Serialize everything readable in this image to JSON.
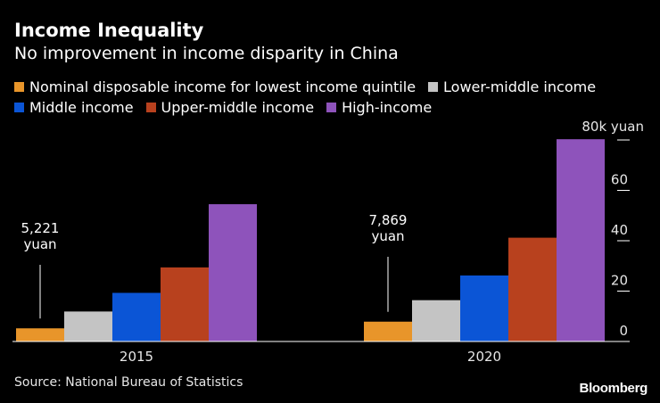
{
  "header": {
    "title": "Income Inequality",
    "subtitle": "No improvement in income disparity in China"
  },
  "source": "Source: National Bureau of Statistics",
  "brand": "Bloomberg",
  "chart_data": {
    "type": "bar",
    "title": "Income Inequality",
    "subtitle": "No improvement in income disparity in China",
    "categories": [
      "2015",
      "2020"
    ],
    "series": [
      {
        "name": "Nominal disposable income for lowest income quintile",
        "color": "#e8952a",
        "values": [
          5.221,
          7.869
        ]
      },
      {
        "name": "Lower-middle income",
        "color": "#c4c4c4",
        "values": [
          11.9,
          16.4
        ]
      },
      {
        "name": "Middle income",
        "color": "#0b55d6",
        "values": [
          19.3,
          26.2
        ]
      },
      {
        "name": "Upper-middle income",
        "color": "#b8411e",
        "values": [
          29.4,
          41.2
        ]
      },
      {
        "name": "High-income",
        "color": "#8e53bb",
        "values": [
          54.5,
          80.3
        ]
      }
    ],
    "annotations": [
      {
        "category": "2015",
        "lines": [
          "5,221",
          "yuan"
        ]
      },
      {
        "category": "2020",
        "lines": [
          "7,869",
          "yuan"
        ]
      }
    ],
    "y_ticks": [
      "0",
      "20",
      "40",
      "60",
      "80k yuan"
    ],
    "y_tick_values": [
      0,
      20,
      40,
      60,
      80
    ],
    "ylim": [
      0,
      80
    ],
    "xlabel": "",
    "ylabel": "",
    "grid": false,
    "legend_position": "top"
  }
}
